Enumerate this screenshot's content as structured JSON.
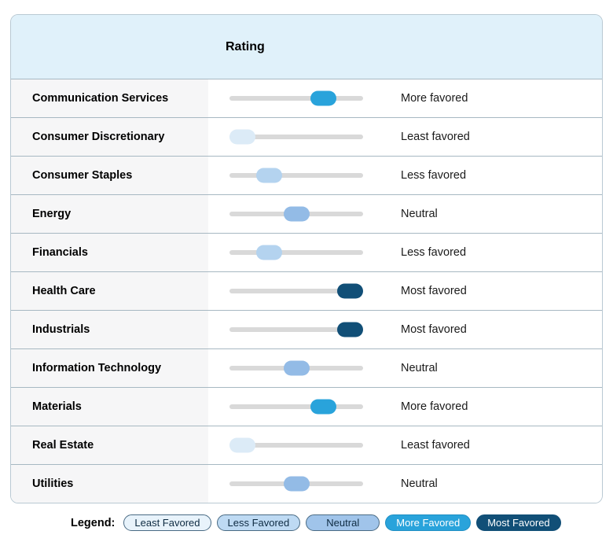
{
  "header": {
    "title": "Rating"
  },
  "scale": {
    "min": 0,
    "max": 4,
    "levels": [
      "Least favored",
      "Less favored",
      "Neutral",
      "More favored",
      "Most favored"
    ]
  },
  "level_colors": {
    "0": "#dcebf7",
    "1": "#b4d3ef",
    "2": "#93bbe6",
    "3": "#29a3db",
    "4": "#114f77"
  },
  "track_color": "#d9d9d9",
  "header_bg": "#e0f1fa",
  "rows": [
    {
      "sector": "Communication Services",
      "rating": "More favored",
      "value": 3
    },
    {
      "sector": "Consumer Discretionary",
      "rating": "Least favored",
      "value": 0
    },
    {
      "sector": "Consumer Staples",
      "rating": "Less favored",
      "value": 1
    },
    {
      "sector": "Energy",
      "rating": "Neutral",
      "value": 2
    },
    {
      "sector": "Financials",
      "rating": "Less favored",
      "value": 1
    },
    {
      "sector": "Health Care",
      "rating": "Most favored",
      "value": 4
    },
    {
      "sector": "Industrials",
      "rating": "Most favored",
      "value": 4
    },
    {
      "sector": "Information Technology",
      "rating": "Neutral",
      "value": 2
    },
    {
      "sector": "Materials",
      "rating": "More favored",
      "value": 3
    },
    {
      "sector": "Real Estate",
      "rating": "Least favored",
      "value": 0
    },
    {
      "sector": "Utilities",
      "rating": "Neutral",
      "value": 2
    }
  ],
  "legend": {
    "label": "Legend:",
    "items": [
      {
        "label": "Least Favored",
        "bg": "#e8f3fb",
        "text": "#0e2b42",
        "border": "#4a6b84"
      },
      {
        "label": "Less Favored",
        "bg": "#bedaf3",
        "text": "#0e2b42",
        "border": "#4a6b84"
      },
      {
        "label": "Neutral",
        "bg": "#a0c4ea",
        "text": "#0e2b42",
        "border": "#4a6b84"
      },
      {
        "label": "More Favored",
        "bg": "#29a3db",
        "text": "#ffffff",
        "border": "#1f8fc3"
      },
      {
        "label": "Most Favored",
        "bg": "#114f77",
        "text": "#ffffff",
        "border": "#114f77"
      }
    ]
  },
  "chart_data": {
    "type": "table",
    "title": "Rating",
    "categories": [
      "Communication Services",
      "Consumer Discretionary",
      "Consumer Staples",
      "Energy",
      "Financials",
      "Health Care",
      "Industrials",
      "Information Technology",
      "Materials",
      "Real Estate",
      "Utilities"
    ],
    "ratings": [
      "More favored",
      "Least favored",
      "Less favored",
      "Neutral",
      "Less favored",
      "Most favored",
      "Most favored",
      "Neutral",
      "More favored",
      "Least favored",
      "Neutral"
    ],
    "values": [
      3,
      0,
      1,
      2,
      1,
      4,
      4,
      2,
      3,
      0,
      2
    ],
    "value_scale": [
      0,
      4
    ],
    "legend_position": "bottom",
    "legend_entries": [
      "Least Favored",
      "Less Favored",
      "Neutral",
      "More Favored",
      "Most Favored"
    ]
  }
}
